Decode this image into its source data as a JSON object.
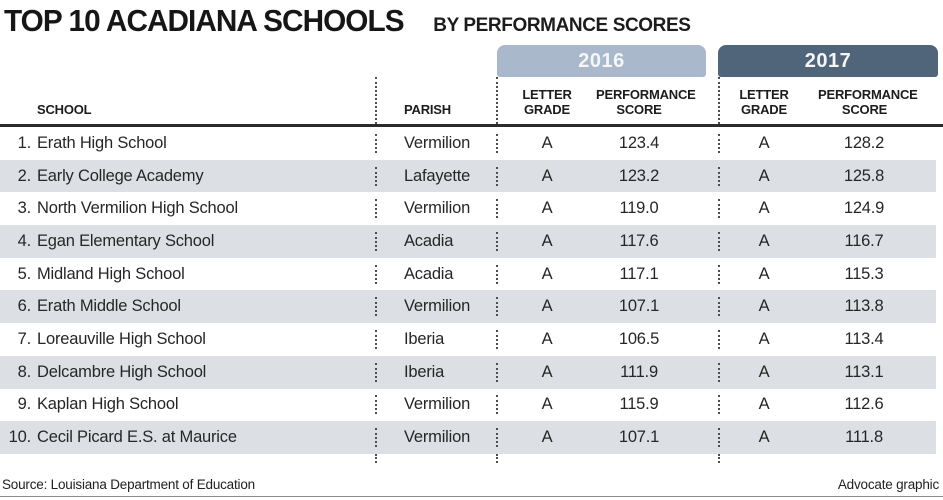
{
  "title": "TOP 10 ACADIANA SCHOOLS",
  "subtitle": "BY PERFORMANCE SCORES",
  "year_tabs": [
    {
      "label": "2016",
      "color": "#a9b8cb"
    },
    {
      "label": "2017",
      "color": "#506579"
    }
  ],
  "columns": {
    "school": "SCHOOL",
    "parish": "PARISH",
    "letter_grade_line1": "LETTER",
    "letter_grade_line2": "GRADE",
    "performance_score_line1": "PERFORMANCE",
    "performance_score_line2": "SCORE"
  },
  "rows": [
    {
      "rank": "1.",
      "school": "Erath High School",
      "parish": "Vermilion",
      "grade_2016": "A",
      "score_2016": "123.4",
      "grade_2017": "A",
      "score_2017": "128.2"
    },
    {
      "rank": "2.",
      "school": "Early College Academy",
      "parish": "Lafayette",
      "grade_2016": "A",
      "score_2016": "123.2",
      "grade_2017": "A",
      "score_2017": "125.8"
    },
    {
      "rank": "3.",
      "school": "North Vermilion High School",
      "parish": "Vermilion",
      "grade_2016": "A",
      "score_2016": "119.0",
      "grade_2017": "A",
      "score_2017": "124.9"
    },
    {
      "rank": "4.",
      "school": "Egan Elementary School",
      "parish": "Acadia",
      "grade_2016": "A",
      "score_2016": "117.6",
      "grade_2017": "A",
      "score_2017": "116.7"
    },
    {
      "rank": "5.",
      "school": "Midland High School",
      "parish": "Acadia",
      "grade_2016": "A",
      "score_2016": "117.1",
      "grade_2017": "A",
      "score_2017": "115.3"
    },
    {
      "rank": "6.",
      "school": "Erath Middle School",
      "parish": "Vermilion",
      "grade_2016": "A",
      "score_2016": "107.1",
      "grade_2017": "A",
      "score_2017": "113.8"
    },
    {
      "rank": "7.",
      "school": "Loreauville High School",
      "parish": "Iberia",
      "grade_2016": "A",
      "score_2016": "106.5",
      "grade_2017": "A",
      "score_2017": "113.4"
    },
    {
      "rank": "8.",
      "school": "Delcambre High School",
      "parish": "Iberia",
      "grade_2016": "A",
      "score_2016": "111.9",
      "grade_2017": "A",
      "score_2017": "113.1"
    },
    {
      "rank": "9.",
      "school": "Kaplan High School",
      "parish": "Vermilion",
      "grade_2016": "A",
      "score_2016": "115.9",
      "grade_2017": "A",
      "score_2017": "112.6"
    },
    {
      "rank": "10.",
      "school": "Cecil Picard E.S. at Maurice",
      "parish": "Vermilion",
      "grade_2016": "A",
      "score_2016": "107.1",
      "grade_2017": "A",
      "score_2017": "111.8"
    }
  ],
  "footer": {
    "source": "Source: Louisiana Department of Education",
    "credit": "Advocate graphic"
  },
  "colors": {
    "tab_2016": "#a9b8cb",
    "tab_2017": "#506579",
    "row_stripe": "#dce0e4",
    "header_rule": "#2b2b2b",
    "dotted_line": "#4d4d4d"
  },
  "chart_data": {
    "type": "table",
    "title": "TOP 10 ACADIANA SCHOOLS BY PERFORMANCE SCORES",
    "categories": [
      "Erath High School",
      "Early College Academy",
      "North Vermilion High School",
      "Egan Elementary School",
      "Midland High School",
      "Erath Middle School",
      "Loreauville High School",
      "Delcambre High School",
      "Kaplan High School",
      "Cecil Picard E.S. at Maurice"
    ],
    "parishes": [
      "Vermilion",
      "Lafayette",
      "Vermilion",
      "Acadia",
      "Acadia",
      "Vermilion",
      "Iberia",
      "Iberia",
      "Vermilion",
      "Vermilion"
    ],
    "series": [
      {
        "name": "2016 Performance Score",
        "values": [
          123.4,
          123.2,
          119.0,
          117.6,
          117.1,
          107.1,
          106.5,
          111.9,
          115.9,
          107.1
        ]
      },
      {
        "name": "2017 Performance Score",
        "values": [
          128.2,
          125.8,
          124.9,
          116.7,
          115.3,
          113.8,
          113.4,
          113.1,
          112.6,
          111.8
        ]
      }
    ],
    "letter_grades_2016": [
      "A",
      "A",
      "A",
      "A",
      "A",
      "A",
      "A",
      "A",
      "A",
      "A"
    ],
    "letter_grades_2017": [
      "A",
      "A",
      "A",
      "A",
      "A",
      "A",
      "A",
      "A",
      "A",
      "A"
    ],
    "source": "Louisiana Department of Education"
  }
}
